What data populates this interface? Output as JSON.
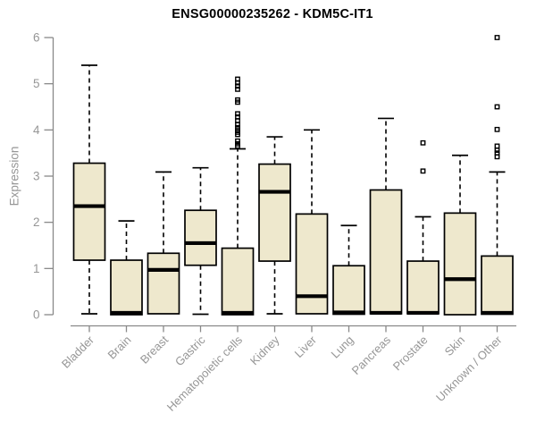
{
  "chart_data": {
    "type": "boxplot",
    "title": "ENSG00000235262 - KDM5C-IT1",
    "ylabel": "Expression",
    "xlabel": "",
    "ylim": [
      0,
      6
    ],
    "yticks": [
      0,
      1,
      2,
      3,
      4,
      5,
      6
    ],
    "grid": false,
    "legend": null,
    "categories": [
      "Bladder",
      "Brain",
      "Breast",
      "Gastric",
      "Hematopoietic cells",
      "Kidney",
      "Liver",
      "Lung",
      "Pancreas",
      "Prostate",
      "Skin",
      "Unknown / Other"
    ],
    "series": [
      {
        "name": "Bladder",
        "low": 0.02,
        "q1": 1.18,
        "median": 2.35,
        "q3": 3.28,
        "high": 5.4,
        "outliers": []
      },
      {
        "name": "Brain",
        "low": 0.0,
        "q1": 0.0,
        "median": 0.04,
        "q3": 1.18,
        "high": 2.03,
        "outliers": []
      },
      {
        "name": "Breast",
        "low": 0.02,
        "q1": 0.02,
        "median": 0.97,
        "q3": 1.33,
        "high": 3.09,
        "outliers": []
      },
      {
        "name": "Gastric",
        "low": 0.01,
        "q1": 1.07,
        "median": 1.55,
        "q3": 2.26,
        "high": 3.18,
        "outliers": []
      },
      {
        "name": "Hematopoietic cells",
        "low": 0.0,
        "q1": 0.0,
        "median": 0.04,
        "q3": 1.44,
        "high": 3.59,
        "outliers": [
          3.65,
          3.7,
          3.76,
          3.9,
          3.95,
          4.0,
          4.05,
          4.12,
          4.2,
          4.28,
          4.35,
          4.6,
          4.65,
          4.88,
          4.95,
          5.02,
          5.1
        ]
      },
      {
        "name": "Kidney",
        "low": 0.02,
        "q1": 1.16,
        "median": 2.66,
        "q3": 3.26,
        "high": 3.85,
        "outliers": []
      },
      {
        "name": "Liver",
        "low": 0.02,
        "q1": 0.02,
        "median": 0.4,
        "q3": 2.18,
        "high": 4.0,
        "outliers": []
      },
      {
        "name": "Lung",
        "low": 0.01,
        "q1": 0.01,
        "median": 0.05,
        "q3": 1.06,
        "high": 1.93,
        "outliers": []
      },
      {
        "name": "Pancreas",
        "low": 0.02,
        "q1": 0.02,
        "median": 0.04,
        "q3": 2.7,
        "high": 4.25,
        "outliers": []
      },
      {
        "name": "Prostate",
        "low": 0.02,
        "q1": 0.02,
        "median": 0.04,
        "q3": 1.16,
        "high": 2.12,
        "outliers": [
          3.11,
          3.72
        ]
      },
      {
        "name": "Skin",
        "low": 0.0,
        "q1": 0.0,
        "median": 0.77,
        "q3": 2.2,
        "high": 3.45,
        "outliers": []
      },
      {
        "name": "Unknown / Other",
        "low": 0.01,
        "q1": 0.01,
        "median": 0.04,
        "q3": 1.27,
        "high": 3.09,
        "outliers": [
          3.42,
          3.5,
          3.56,
          3.65,
          4.01,
          4.5,
          6.0
        ]
      }
    ],
    "colors": {
      "box_fill": "#EEE8CD",
      "box_border": "#000000",
      "median": "#000000",
      "whisker": "#000000",
      "outlier": "#000000",
      "axis": "#898989",
      "tick_label": "#969696",
      "title": "#000000",
      "background": "#FFFFFF"
    }
  }
}
